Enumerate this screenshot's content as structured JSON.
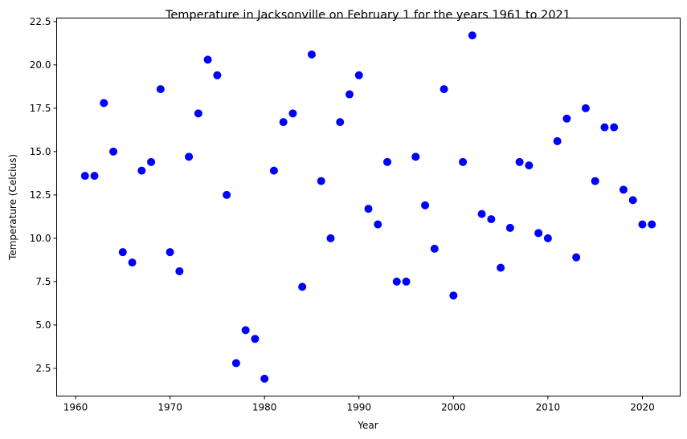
{
  "chart_data": {
    "type": "scatter",
    "title": "Temperature in Jacksonville on February 1 for the years 1961 to 2021",
    "xlabel": "Year",
    "ylabel": "Temperature (Celcius)",
    "xlim": [
      1958.0,
      2024.0
    ],
    "ylim": [
      0.9,
      22.7
    ],
    "xticks": [
      1960,
      1970,
      1980,
      1990,
      2000,
      2010,
      2020
    ],
    "yticks": [
      2.5,
      5.0,
      7.5,
      10.0,
      12.5,
      15.0,
      17.5,
      20.0,
      22.5
    ],
    "ytick_labels": [
      "2.5",
      "5.0",
      "7.5",
      "10.0",
      "12.5",
      "15.0",
      "17.5",
      "20.0",
      "22.5"
    ],
    "grid": false,
    "marker_color": "#0000ff",
    "x": [
      1961,
      1962,
      1963,
      1964,
      1965,
      1966,
      1967,
      1968,
      1969,
      1970,
      1971,
      1972,
      1973,
      1974,
      1975,
      1976,
      1977,
      1978,
      1979,
      1980,
      1981,
      1982,
      1983,
      1984,
      1985,
      1986,
      1987,
      1988,
      1989,
      1990,
      1991,
      1992,
      1993,
      1994,
      1995,
      1996,
      1997,
      1998,
      1999,
      2000,
      2001,
      2002,
      2003,
      2004,
      2005,
      2006,
      2007,
      2008,
      2009,
      2010,
      2011,
      2012,
      2013,
      2014,
      2015,
      2016,
      2017,
      2018,
      2019,
      2020,
      2021
    ],
    "y": [
      13.6,
      13.6,
      17.8,
      15.0,
      9.2,
      8.6,
      13.9,
      14.4,
      18.6,
      9.2,
      8.1,
      14.7,
      17.2,
      20.3,
      19.4,
      12.5,
      2.8,
      4.7,
      4.2,
      1.9,
      13.9,
      16.7,
      17.2,
      7.2,
      20.6,
      13.3,
      10.0,
      16.7,
      18.3,
      19.4,
      11.7,
      10.8,
      14.4,
      7.5,
      7.5,
      14.7,
      11.9,
      9.4,
      18.6,
      6.7,
      14.4,
      21.7,
      11.4,
      11.1,
      8.3,
      10.6,
      14.4,
      14.2,
      10.3,
      10.0,
      15.6,
      16.9,
      8.9,
      17.5,
      13.3,
      16.4,
      16.4,
      12.8,
      12.2,
      10.8,
      10.8
    ]
  }
}
